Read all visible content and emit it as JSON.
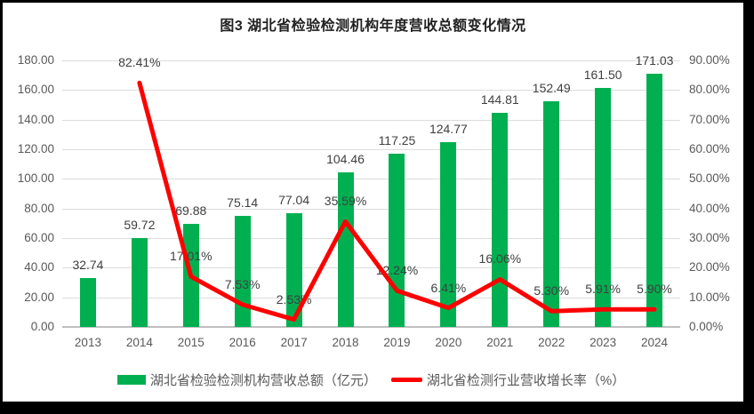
{
  "title": "图3 湖北省检验检测机构年度营收总额变化情况",
  "colors": {
    "bar": "#00B050",
    "line": "#FF0000",
    "gridline": "#DCDCDC",
    "axis_line": "#BFBFBF",
    "frame_border": "#000000",
    "label_text": "#404040",
    "tick_text": "#595959"
  },
  "chart_data": {
    "type": "bar+line combo",
    "title": "图3 湖北省检验检测机构年度营收总额变化情况",
    "categories": [
      "2013",
      "2014",
      "2015",
      "2016",
      "2017",
      "2018",
      "2019",
      "2020",
      "2021",
      "2022",
      "2023",
      "2024"
    ],
    "series": [
      {
        "name": "湖北省检验检测机构营收总额（亿元）",
        "type": "bar",
        "axis": "left",
        "color": "#00B050",
        "values": [
          32.74,
          59.72,
          69.88,
          75.14,
          77.04,
          104.46,
          117.25,
          124.77,
          144.81,
          152.49,
          161.5,
          171.03
        ],
        "labels": [
          "32.74",
          "59.72",
          "69.88",
          "75.14",
          "77.04",
          "104.46",
          "117.25",
          "124.77",
          "144.81",
          "152.49",
          "161.50",
          "171.03"
        ]
      },
      {
        "name": "湖北省检测行业营收增长率（%）",
        "type": "line",
        "axis": "right",
        "color": "#FF0000",
        "values": [
          null,
          82.41,
          17.01,
          7.53,
          2.53,
          35.59,
          12.24,
          6.41,
          16.06,
          5.3,
          5.91,
          5.9
        ],
        "labels": [
          null,
          "82.41%",
          "17.01%",
          "7.53%",
          "2.53%",
          "35.59%",
          "12.24%",
          "6.41%",
          "16.06%",
          "5.30%",
          "5.91%",
          "5.90%"
        ]
      }
    ],
    "left_axis": {
      "min": 0,
      "max": 180,
      "step": 20,
      "ticks": [
        "0.00",
        "20.00",
        "40.00",
        "60.00",
        "80.00",
        "100.00",
        "120.00",
        "140.00",
        "160.00",
        "180.00"
      ]
    },
    "right_axis": {
      "min": 0,
      "max": 90,
      "step": 10,
      "ticks": [
        "0.00%",
        "10.00%",
        "20.00%",
        "30.00%",
        "40.00%",
        "50.00%",
        "60.00%",
        "70.00%",
        "80.00%",
        "90.00%"
      ]
    },
    "grid": true,
    "legend_position": "bottom"
  }
}
